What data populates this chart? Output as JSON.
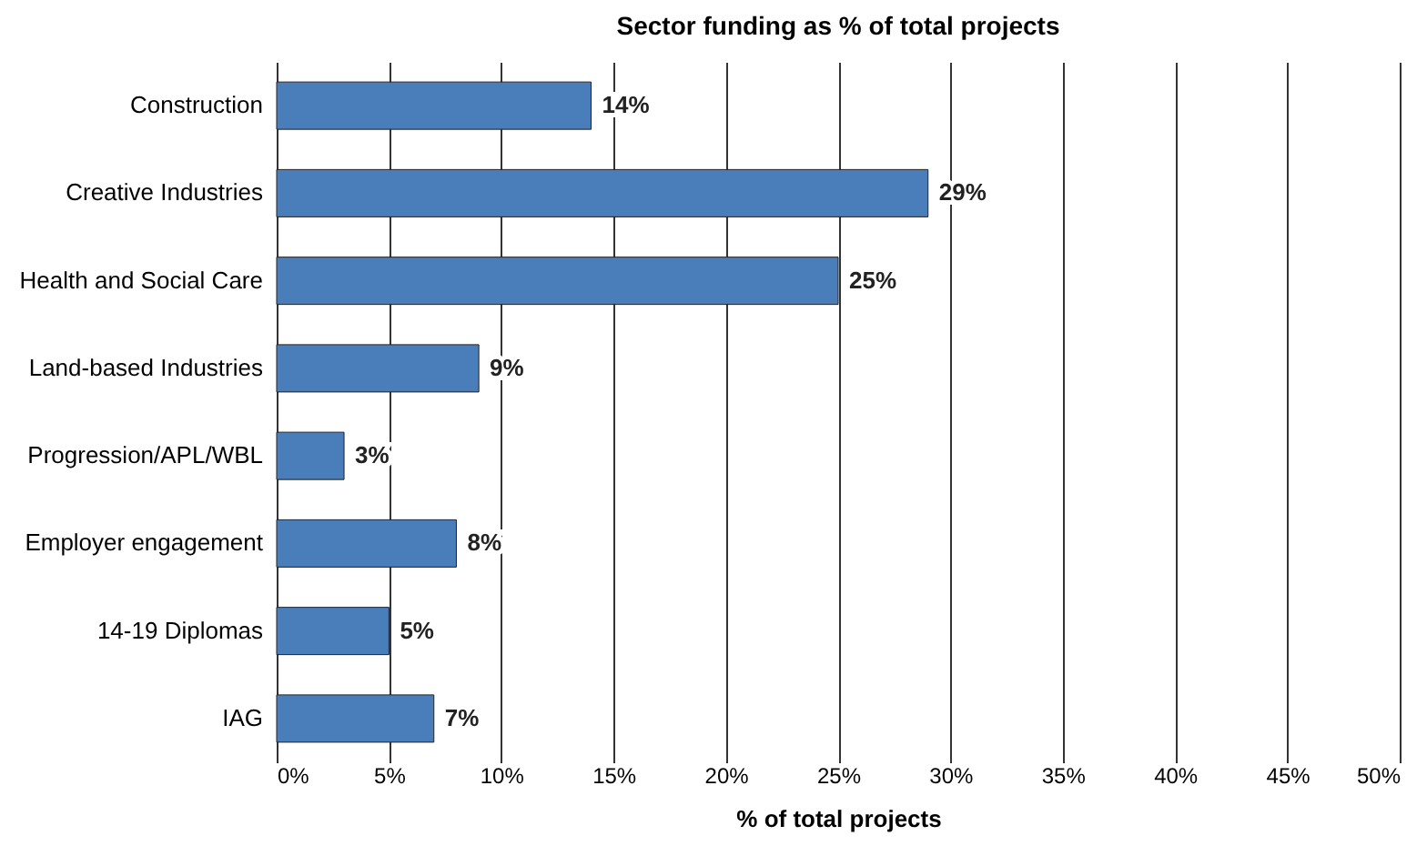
{
  "chart_data": {
    "type": "bar",
    "orientation": "horizontal",
    "title": "Sector funding as % of total projects",
    "xlabel": "% of total projects",
    "categories": [
      "Construction",
      "Creative Industries",
      "Health and Social Care",
      "Land-based Industries",
      "Progression/APL/WBL",
      "Employer engagement",
      "14-19 Diplomas",
      "IAG"
    ],
    "values": [
      14,
      29,
      25,
      9,
      3,
      8,
      5,
      7
    ],
    "value_labels": [
      "14%",
      "29%",
      "25%",
      "9%",
      "3%",
      "8%",
      "5%",
      "7%"
    ],
    "color": "#4a7ebb",
    "xlim": [
      0,
      50
    ],
    "xticks": [
      {
        "value": 0,
        "label": "0%"
      },
      {
        "value": 5,
        "label": "5%"
      },
      {
        "value": 10,
        "label": "10%"
      },
      {
        "value": 15,
        "label": "15%"
      },
      {
        "value": 20,
        "label": "20%"
      },
      {
        "value": 25,
        "label": "25%"
      },
      {
        "value": 30,
        "label": "30%"
      },
      {
        "value": 35,
        "label": "35%"
      },
      {
        "value": 40,
        "label": "40%"
      },
      {
        "value": 45,
        "label": "45%"
      },
      {
        "value": 50,
        "label": "50%"
      }
    ],
    "grid": "x"
  }
}
